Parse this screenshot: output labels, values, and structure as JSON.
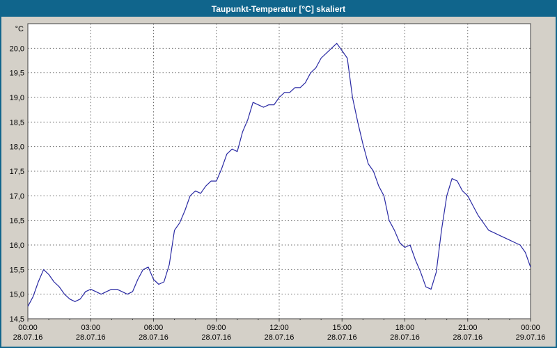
{
  "window": {
    "title": "Taupunkt-Temperatur [°C] skaliert"
  },
  "colors": {
    "title_bar": "#10658c",
    "window_bg": "#d4d0c8",
    "plot_bg": "#ffffff",
    "grid": "#6a6a6a",
    "axis": "#404040",
    "line": "#2929a3",
    "text": "#000000"
  },
  "chart_data": {
    "type": "line",
    "title": "Taupunkt-Temperatur [°C] skaliert",
    "xlabel": "",
    "ylabel": "°C",
    "ylim": [
      14.5,
      20.5
    ],
    "grid": true,
    "legend": "none",
    "y_ticks": [
      14.5,
      15.0,
      15.5,
      16.0,
      16.5,
      17.0,
      17.5,
      18.0,
      18.5,
      19.0,
      19.5,
      20.0
    ],
    "y_tick_labels": [
      "14,5",
      "15,0",
      "15,5",
      "16,0",
      "16,5",
      "17,0",
      "17,5",
      "18,0",
      "18,5",
      "19,0",
      "19,5",
      "20,0"
    ],
    "x_ticks": [
      {
        "hour": 0,
        "time": "00:00",
        "date": "28.07.16"
      },
      {
        "hour": 3,
        "time": "03:00",
        "date": "28.07.16"
      },
      {
        "hour": 6,
        "time": "06:00",
        "date": "28.07.16"
      },
      {
        "hour": 9,
        "time": "09:00",
        "date": "28.07.16"
      },
      {
        "hour": 12,
        "time": "12:00",
        "date": "28.07.16"
      },
      {
        "hour": 15,
        "time": "15:00",
        "date": "28.07.16"
      },
      {
        "hour": 18,
        "time": "18:00",
        "date": "28.07.16"
      },
      {
        "hour": 21,
        "time": "21:00",
        "date": "28.07.16"
      },
      {
        "hour": 24,
        "time": "00:00",
        "date": "29.07.16"
      }
    ],
    "series": [
      {
        "name": "Taupunkt-Temperatur",
        "x_hours": [
          0,
          0.25,
          0.5,
          0.75,
          1,
          1.25,
          1.5,
          1.75,
          2,
          2.25,
          2.5,
          2.75,
          3,
          3.25,
          3.5,
          3.75,
          4,
          4.25,
          4.5,
          4.75,
          5,
          5.25,
          5.5,
          5.75,
          6,
          6.25,
          6.5,
          6.75,
          7,
          7.25,
          7.5,
          7.75,
          8,
          8.25,
          8.5,
          8.75,
          9,
          9.25,
          9.5,
          9.75,
          10,
          10.25,
          10.5,
          10.75,
          11,
          11.25,
          11.5,
          11.75,
          12,
          12.25,
          12.5,
          12.75,
          13,
          13.25,
          13.5,
          13.75,
          14,
          14.25,
          14.5,
          14.75,
          15,
          15.25,
          15.5,
          15.75,
          16,
          16.25,
          16.5,
          16.75,
          17,
          17.25,
          17.5,
          17.75,
          18,
          18.25,
          18.5,
          18.75,
          19,
          19.25,
          19.5,
          19.75,
          20,
          20.25,
          20.5,
          20.75,
          21,
          21.25,
          21.5,
          21.75,
          22,
          22.25,
          22.5,
          22.75,
          23,
          23.25,
          23.5,
          23.75,
          24
        ],
        "values": [
          14.75,
          14.95,
          15.25,
          15.5,
          15.4,
          15.25,
          15.15,
          15.0,
          14.9,
          14.85,
          14.9,
          15.05,
          15.1,
          15.05,
          15.0,
          15.05,
          15.1,
          15.1,
          15.05,
          15.0,
          15.05,
          15.3,
          15.5,
          15.55,
          15.3,
          15.2,
          15.25,
          15.6,
          16.3,
          16.45,
          16.7,
          17.0,
          17.1,
          17.05,
          17.2,
          17.3,
          17.3,
          17.55,
          17.85,
          17.95,
          17.9,
          18.3,
          18.55,
          18.9,
          18.85,
          18.8,
          18.85,
          18.85,
          19.0,
          19.1,
          19.1,
          19.2,
          19.2,
          19.3,
          19.5,
          19.6,
          19.8,
          19.9,
          20.0,
          20.1,
          19.95,
          19.8,
          19.0,
          18.5,
          18.05,
          17.65,
          17.5,
          17.2,
          17.0,
          16.5,
          16.3,
          16.05,
          15.95,
          16.0,
          15.7,
          15.45,
          15.15,
          15.1,
          15.45,
          16.3,
          17.0,
          17.35,
          17.3,
          17.1,
          17.0,
          16.8,
          16.6,
          16.45,
          16.3,
          16.25,
          16.2,
          16.15,
          16.1,
          16.05,
          16.0,
          15.85,
          15.55
        ]
      }
    ]
  }
}
